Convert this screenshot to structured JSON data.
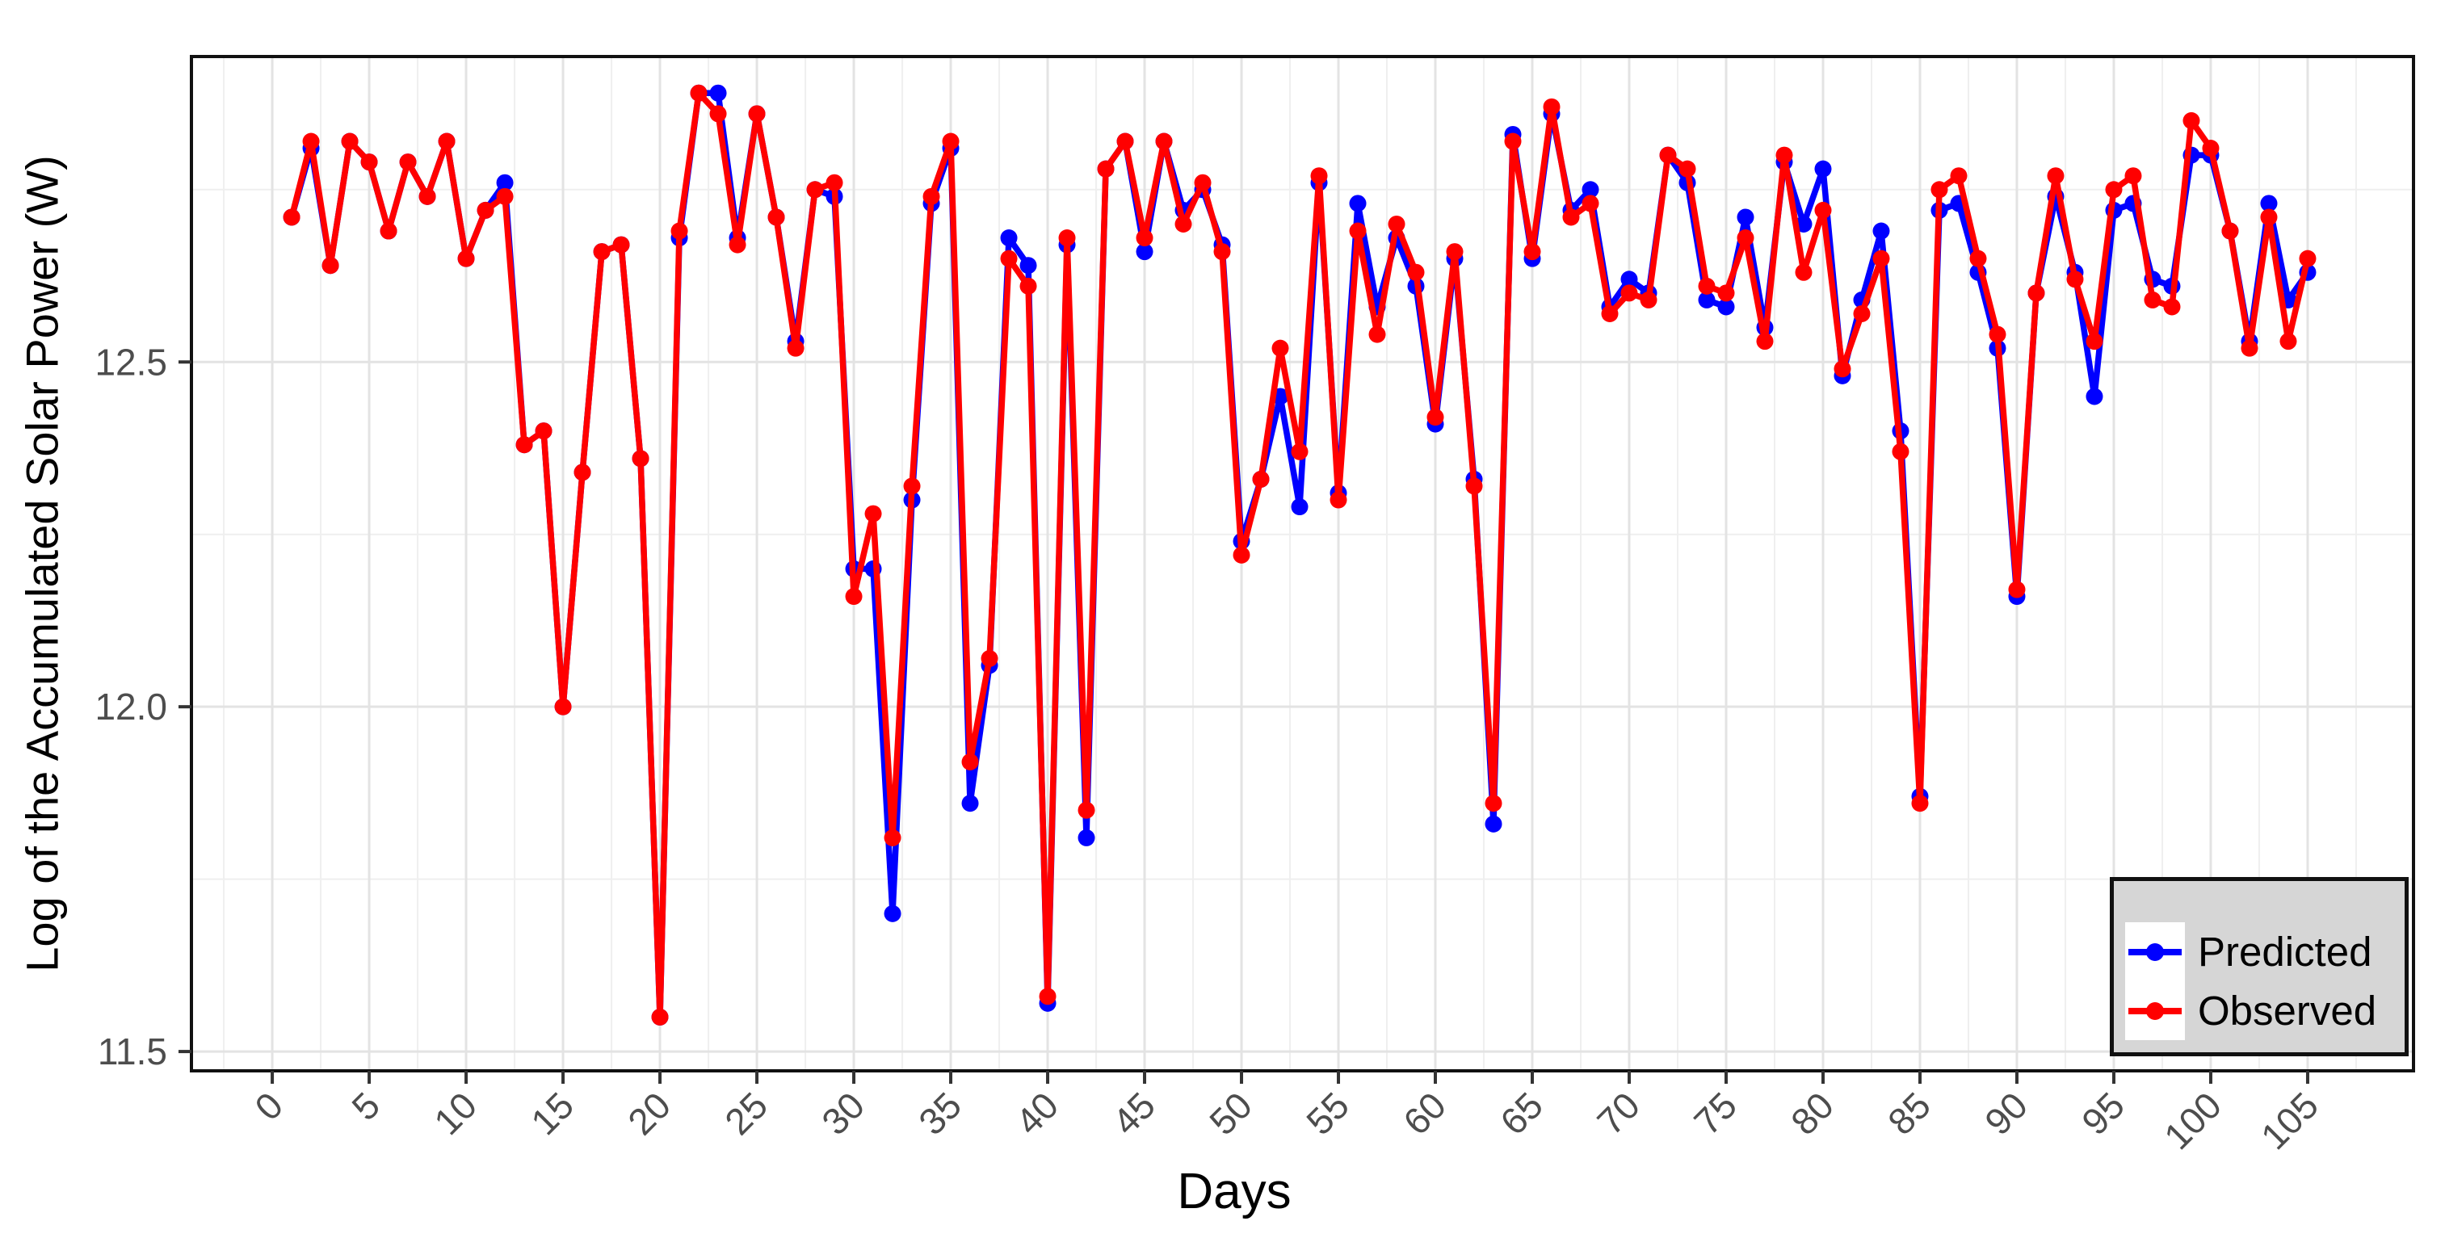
{
  "chart_data": {
    "type": "line",
    "title": "",
    "xlabel": "Days",
    "ylabel": "Log of the Accumulated Solar Power (W)",
    "xlim": [
      -4.17,
      110.46
    ],
    "ylim": [
      11.472,
      12.943
    ],
    "x_ticks": [
      0,
      5,
      10,
      15,
      20,
      25,
      30,
      35,
      40,
      45,
      50,
      55,
      60,
      65,
      70,
      75,
      80,
      85,
      90,
      95,
      100,
      105
    ],
    "y_ticks": [
      11.5,
      12.0,
      12.5
    ],
    "y_tick_labels": [
      "11.5",
      "12.0",
      "12.5"
    ],
    "x_minor_ticks": [
      -2.5,
      2.5,
      7.5,
      12.5,
      17.5,
      22.5,
      27.5,
      32.5,
      37.5,
      42.5,
      47.5,
      52.5,
      57.5,
      62.5,
      67.5,
      72.5,
      77.5,
      82.5,
      87.5,
      92.5,
      97.5,
      102.5,
      107.5
    ],
    "y_minor_ticks": [
      11.75,
      12.25,
      12.75
    ],
    "grid": "major+minor",
    "legend_position": "bottom-right-inside",
    "x": [
      1,
      2,
      3,
      4,
      5,
      6,
      7,
      8,
      9,
      10,
      11,
      12,
      13,
      14,
      15,
      16,
      17,
      18,
      19,
      20,
      21,
      22,
      23,
      24,
      25,
      26,
      27,
      28,
      29,
      30,
      31,
      32,
      33,
      34,
      35,
      36,
      37,
      38,
      39,
      40,
      41,
      42,
      43,
      44,
      45,
      46,
      47,
      48,
      49,
      50,
      51,
      52,
      53,
      54,
      55,
      56,
      57,
      58,
      59,
      60,
      61,
      62,
      63,
      64,
      65,
      66,
      67,
      68,
      69,
      70,
      71,
      72,
      73,
      74,
      75,
      76,
      77,
      78,
      79,
      80,
      81,
      82,
      83,
      84,
      85,
      86,
      87,
      88,
      89,
      90,
      91,
      92,
      93,
      94,
      95,
      96,
      97,
      98,
      99,
      100,
      101,
      102,
      103,
      104,
      105
    ],
    "series": [
      {
        "name": "Predicted",
        "color": "#0000ff",
        "values": [
          12.71,
          12.81,
          12.64,
          12.82,
          12.79,
          12.69,
          12.79,
          12.74,
          12.82,
          12.65,
          12.72,
          12.76,
          12.38,
          12.4,
          12.0,
          12.34,
          12.66,
          12.67,
          12.36,
          11.55,
          12.68,
          12.89,
          12.89,
          12.68,
          12.86,
          12.71,
          12.53,
          12.75,
          12.74,
          12.2,
          12.2,
          11.7,
          12.3,
          12.73,
          12.81,
          11.86,
          12.06,
          12.68,
          12.64,
          11.57,
          12.67,
          11.81,
          12.78,
          12.82,
          12.66,
          12.82,
          12.72,
          12.75,
          12.67,
          12.24,
          12.33,
          12.45,
          12.29,
          12.76,
          12.31,
          12.73,
          12.58,
          12.68,
          12.61,
          12.41,
          12.65,
          12.33,
          11.83,
          12.83,
          12.65,
          12.86,
          12.72,
          12.75,
          12.58,
          12.62,
          12.6,
          12.8,
          12.76,
          12.59,
          12.58,
          12.71,
          12.55,
          12.79,
          12.7,
          12.78,
          12.48,
          12.59,
          12.69,
          12.4,
          11.87,
          12.72,
          12.73,
          12.63,
          12.52,
          12.16,
          12.6,
          12.74,
          12.63,
          12.45,
          12.72,
          12.73,
          12.62,
          12.61,
          12.8,
          12.8,
          12.69,
          12.53,
          12.73,
          12.59,
          12.63
        ]
      },
      {
        "name": "Observed",
        "color": "#ff0000",
        "values": [
          12.71,
          12.82,
          12.64,
          12.82,
          12.79,
          12.69,
          12.79,
          12.74,
          12.82,
          12.65,
          12.72,
          12.74,
          12.38,
          12.4,
          12.0,
          12.34,
          12.66,
          12.67,
          12.36,
          11.55,
          12.69,
          12.89,
          12.86,
          12.67,
          12.86,
          12.71,
          12.52,
          12.75,
          12.76,
          12.16,
          12.28,
          11.81,
          12.32,
          12.74,
          12.82,
          11.92,
          12.07,
          12.65,
          12.61,
          11.58,
          12.68,
          11.85,
          12.78,
          12.82,
          12.68,
          12.82,
          12.7,
          12.76,
          12.66,
          12.22,
          12.33,
          12.52,
          12.37,
          12.77,
          12.3,
          12.69,
          12.54,
          12.7,
          12.63,
          12.42,
          12.66,
          12.32,
          11.86,
          12.82,
          12.66,
          12.87,
          12.71,
          12.73,
          12.57,
          12.6,
          12.59,
          12.8,
          12.78,
          12.61,
          12.6,
          12.68,
          12.53,
          12.8,
          12.63,
          12.72,
          12.49,
          12.57,
          12.65,
          12.37,
          11.86,
          12.75,
          12.77,
          12.65,
          12.54,
          12.17,
          12.6,
          12.77,
          12.62,
          12.53,
          12.75,
          12.77,
          12.59,
          12.58,
          12.85,
          12.81,
          12.69,
          12.52,
          12.71,
          12.53,
          12.65
        ]
      }
    ],
    "style": {
      "panel_background": "#ffffff",
      "panel_border_color": "#111111",
      "grid_major_color": "#e3e3e3",
      "grid_minor_color": "#efefef",
      "tick_color": "#333333",
      "tick_label_color": "#4d4d4d",
      "legend_background": "#d6d6d6",
      "legend_key_background": "#ffffff"
    }
  },
  "legend": {
    "items": [
      {
        "label": "Predicted",
        "color": "#0000ff"
      },
      {
        "label": "Observed",
        "color": "#ff0000"
      }
    ]
  }
}
